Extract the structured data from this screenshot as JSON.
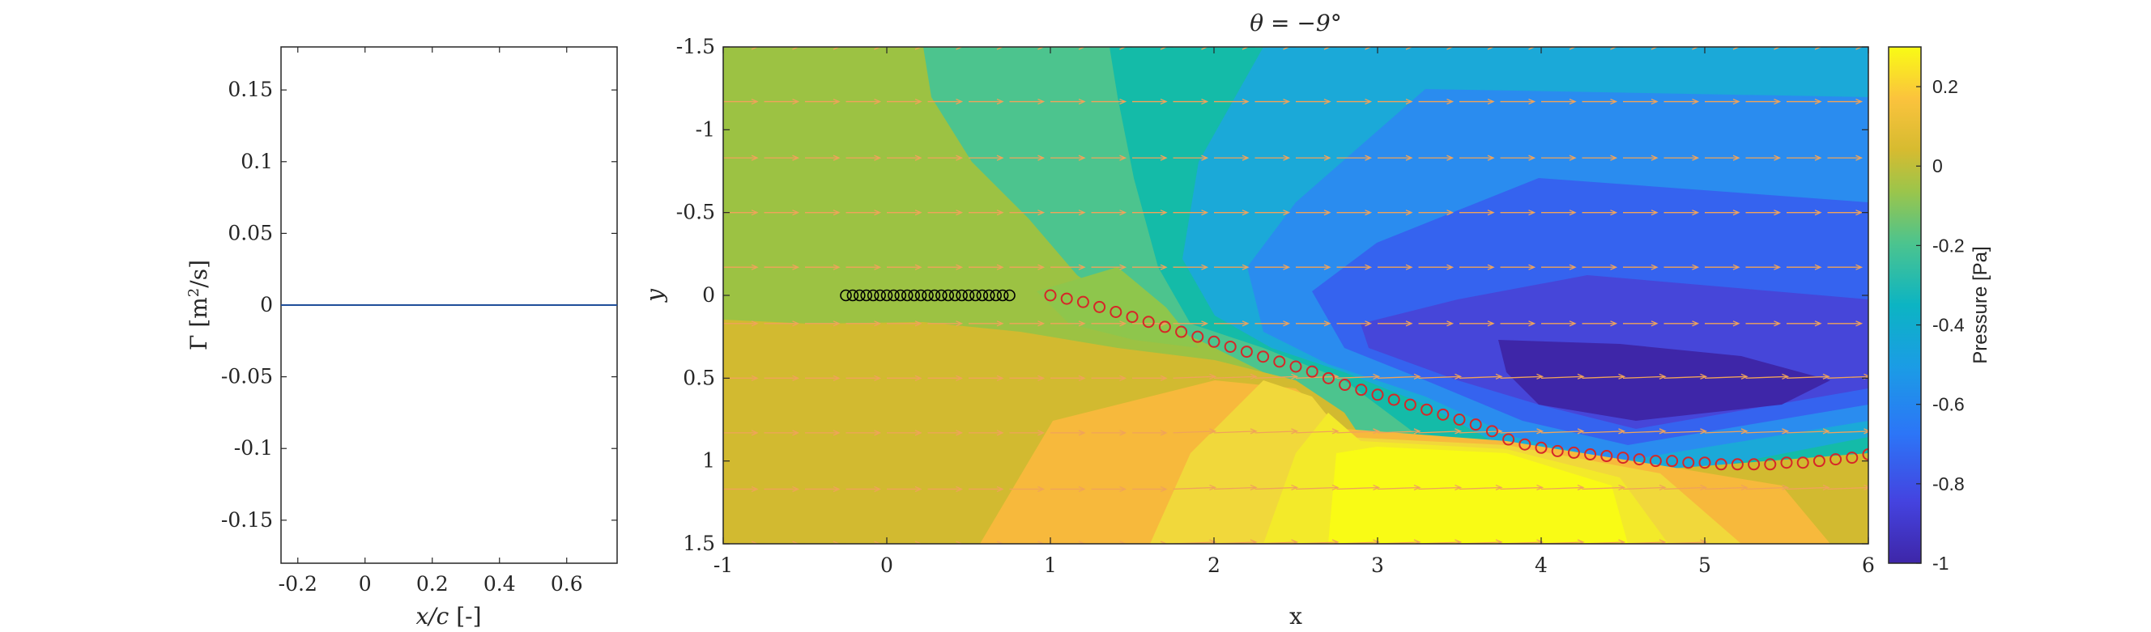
{
  "chart_data": [
    {
      "type": "line",
      "ylabel_main": "Γ [m",
      "ylabel_sup": "2",
      "ylabel_tail": "/s]",
      "xlabel_italic": "x/c",
      "xlabel_tail": " [-]",
      "xlim": [
        -0.25,
        0.75
      ],
      "ylim": [
        -0.18,
        0.18
      ],
      "xticks": [
        -0.2,
        0,
        0.2,
        0.4,
        0.6
      ],
      "xtick_labels": [
        "-0.2",
        "0",
        "0.2",
        "0.4",
        "0.6"
      ],
      "yticks": [
        0.15,
        0.1,
        0.05,
        0,
        -0.05,
        -0.1,
        -0.15
      ],
      "ytick_labels": [
        "0.15",
        "0.1",
        "0.05",
        "0",
        "-0.05",
        "-0.1",
        "-0.15"
      ],
      "series": [
        {
          "x": [
            -0.25,
            -0.15,
            -0.05,
            0.05,
            0.15,
            0.25,
            0.35,
            0.45,
            0.55,
            0.65,
            0.75
          ],
          "y": [
            0,
            0,
            0,
            0,
            0,
            0,
            0,
            0,
            0,
            0,
            0
          ]
        }
      ]
    },
    {
      "type": "heatmap",
      "title_lhs": "θ = −9°",
      "xlabel": "x",
      "ylabel": "y",
      "xlim": [
        -1,
        6
      ],
      "ylim": [
        -1.5,
        1.5
      ],
      "y_reversed": true,
      "xticks": [
        -1,
        0,
        1,
        2,
        3,
        4,
        5,
        6
      ],
      "xtick_labels": [
        "-1",
        "0",
        "1",
        "2",
        "3",
        "4",
        "5",
        "6"
      ],
      "yticks": [
        -1.5,
        -1,
        -0.5,
        0,
        0.5,
        1,
        1.5
      ],
      "ytick_labels": [
        "-1.5",
        "-1",
        "-0.5",
        "0",
        "0.5",
        "1",
        "1.5"
      ],
      "colorbar": {
        "label": "Pressure [Pa]",
        "range": [
          -1,
          0.3
        ],
        "ticks": [
          0.2,
          0,
          -0.2,
          -0.4,
          -0.6,
          -0.8,
          -1
        ],
        "tick_labels": [
          "0.2",
          "0",
          "-0.2",
          "-0.4",
          "-0.6",
          "-0.8",
          "-1"
        ],
        "colormap": "parula"
      },
      "airfoil_points": {
        "x_start": -0.25,
        "x_end": 0.75,
        "count": 25,
        "y": 0,
        "color": "#000000"
      },
      "wake_points": {
        "color": "#d62728",
        "x": [
          1.0,
          1.1,
          1.2,
          1.3,
          1.4,
          1.5,
          1.6,
          1.7,
          1.8,
          1.9,
          2.0,
          2.1,
          2.2,
          2.3,
          2.4,
          2.5,
          2.6,
          2.7,
          2.8,
          2.9,
          3.0,
          3.1,
          3.2,
          3.3,
          3.4,
          3.5,
          3.6,
          3.7,
          3.8,
          3.9,
          4.0,
          4.1,
          4.2,
          4.3,
          4.4,
          4.5,
          4.6,
          4.7,
          4.8,
          4.9,
          5.0,
          5.1,
          5.2,
          5.3,
          5.4,
          5.5,
          5.6,
          5.7,
          5.8,
          5.9,
          6.0
        ],
        "y": [
          0.0,
          0.02,
          0.04,
          0.07,
          0.1,
          0.13,
          0.16,
          0.19,
          0.22,
          0.25,
          0.28,
          0.31,
          0.34,
          0.37,
          0.4,
          0.43,
          0.46,
          0.5,
          0.54,
          0.57,
          0.6,
          0.63,
          0.66,
          0.69,
          0.72,
          0.75,
          0.78,
          0.82,
          0.87,
          0.9,
          0.92,
          0.94,
          0.95,
          0.96,
          0.97,
          0.98,
          0.99,
          1.0,
          1.0,
          1.01,
          1.01,
          1.02,
          1.02,
          1.02,
          1.02,
          1.01,
          1.01,
          1.0,
          0.99,
          0.98,
          0.96
        ]
      },
      "arrow_rows_y": [
        -1.5,
        -1.17,
        -0.83,
        -0.5,
        -0.17,
        0.17,
        0.5,
        0.83,
        1.17,
        1.5
      ],
      "arrow_color": "#f0a35a"
    }
  ]
}
